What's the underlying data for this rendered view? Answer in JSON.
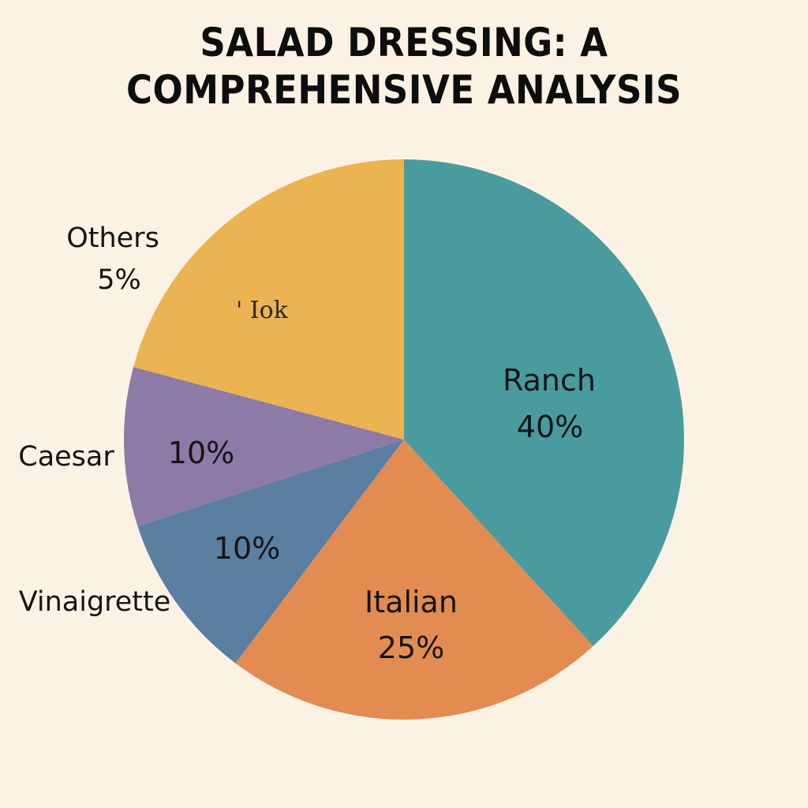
{
  "chart_data": {
    "type": "pie",
    "title_lines": [
      "SALAD DRESSING: A",
      "COMPREHENSIVE ANALYSIS"
    ],
    "slices": [
      {
        "label": "Ranch",
        "value_label": "40%",
        "value": 40,
        "color": "#4a9ba0"
      },
      {
        "label": "Italian",
        "value_label": "25%",
        "value": 25,
        "color": "#e28c52"
      },
      {
        "label": "Vinaigrette",
        "value_label": "10%",
        "value": 10,
        "color": "#5b7fa1"
      },
      {
        "label": "Caesar",
        "value_label": "10%",
        "value": 10,
        "color": "#8e7aa6"
      },
      {
        "label": "Others",
        "value_label": "5%",
        "value": 5,
        "color": "#ebb352"
      }
    ],
    "stray_text": "' Iok"
  }
}
